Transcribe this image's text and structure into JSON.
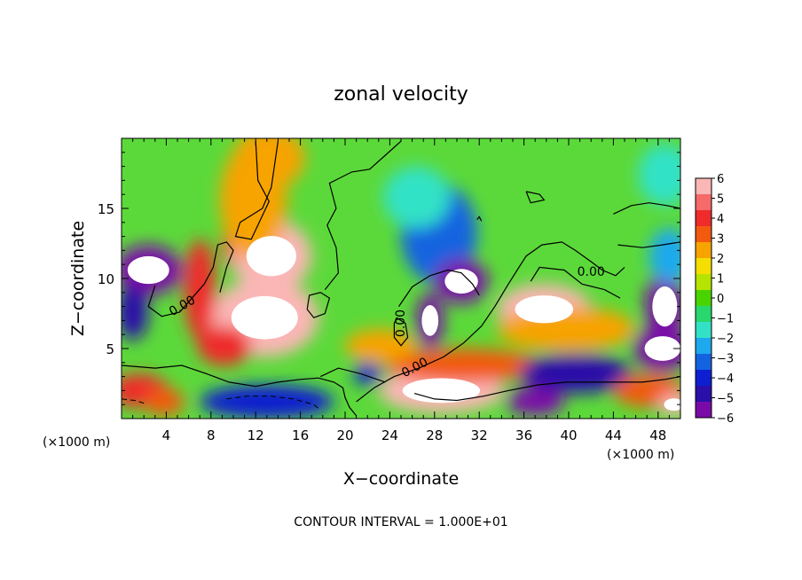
{
  "chart_data": {
    "type": "heatmap",
    "title": "zonal velocity",
    "xlabel": "X−coordinate",
    "ylabel": "Z−coordinate",
    "x_unit_left": "(×1000 m)",
    "x_unit_right": "(×1000 m)",
    "footer": "CONTOUR INTERVAL = 1.000E+01",
    "xlim": [
      0,
      50
    ],
    "ylim": [
      0,
      20
    ],
    "x_ticks": [
      4,
      8,
      12,
      16,
      20,
      24,
      28,
      32,
      36,
      40,
      44,
      48
    ],
    "y_ticks": [
      5,
      10,
      15
    ],
    "colorbar": {
      "min": -6,
      "max": 6,
      "labels": [
        6,
        5,
        4,
        3,
        2,
        1,
        0,
        -1,
        -2,
        -3,
        -4,
        -5,
        -6
      ],
      "colors": [
        "#fbb6b6",
        "#f66a6a",
        "#ef2b2b",
        "#f25a10",
        "#f7a300",
        "#f4df00",
        "#b5e400",
        "#49d400",
        "#28d86e",
        "#33e2c6",
        "#1ea8ee",
        "#1363e0",
        "#0d1fd0",
        "#2a0fa8",
        "#7a0aa8"
      ]
    },
    "contour_labels": [
      "0.00",
      "0.00",
      "0.00",
      "0.00"
    ],
    "contour_lines": [
      {
        "level": 0,
        "points": [
          [
            12,
            19.8
          ],
          [
            12.2,
            17
          ],
          [
            13.2,
            15.5
          ],
          [
            11.6,
            12.8
          ],
          [
            10.2,
            13
          ],
          [
            10.6,
            14
          ],
          [
            12.6,
            15
          ],
          [
            13.4,
            16.5
          ],
          [
            14,
            19.8
          ]
        ]
      },
      {
        "level": 0,
        "points": [
          [
            3,
            9.5
          ],
          [
            2.4,
            8
          ],
          [
            3.6,
            7.3
          ],
          [
            5.2,
            7.6
          ],
          [
            6.2,
            8.5
          ],
          [
            7.4,
            9.6
          ],
          [
            8.2,
            10.8
          ],
          [
            8.6,
            12.4
          ],
          [
            9.4,
            12.6
          ],
          [
            10,
            12
          ],
          [
            9.4,
            10.8
          ],
          [
            8.8,
            9
          ]
        ]
      },
      {
        "level": 0,
        "points": [
          [
            0,
            3.8
          ],
          [
            3,
            3.6
          ],
          [
            5.4,
            3.8
          ],
          [
            7.6,
            3.2
          ],
          [
            9.6,
            2.6
          ],
          [
            12,
            2.3
          ],
          [
            14,
            2.6
          ],
          [
            16,
            2.8
          ],
          [
            17.6,
            2.9
          ],
          [
            19,
            2.6
          ],
          [
            19.8,
            2.2
          ],
          [
            20,
            1.5
          ],
          [
            20.4,
            0.8
          ],
          [
            21,
            0.2
          ]
        ]
      },
      {
        "level": 0,
        "points": [
          [
            18.2,
            9.2
          ],
          [
            19.4,
            10.4
          ],
          [
            19.2,
            12.2
          ],
          [
            18.4,
            13.8
          ],
          [
            19.2,
            15
          ],
          [
            18.6,
            16.8
          ],
          [
            20.6,
            17.6
          ],
          [
            22.2,
            17.8
          ],
          [
            23.6,
            18.8
          ],
          [
            25,
            19.8
          ]
        ]
      },
      {
        "level": 0,
        "points": [
          [
            16.6,
            7.8
          ],
          [
            17.2,
            7.2
          ],
          [
            18.2,
            7.5
          ],
          [
            18.6,
            8.6
          ],
          [
            17.8,
            9
          ],
          [
            16.8,
            8.8
          ],
          [
            16.6,
            7.8
          ]
        ]
      },
      {
        "level": 0,
        "points": [
          [
            24.6,
            7.2
          ],
          [
            25.4,
            6.8
          ],
          [
            25.6,
            5.8
          ],
          [
            25,
            5.2
          ],
          [
            24.4,
            5.8
          ],
          [
            24.4,
            6.8
          ],
          [
            24.6,
            7.2
          ]
        ]
      },
      {
        "level": 0,
        "points": [
          [
            21,
            1.2
          ],
          [
            22.6,
            2.2
          ],
          [
            24.4,
            3
          ],
          [
            26.6,
            3.6
          ],
          [
            28.8,
            4.4
          ],
          [
            30.6,
            5.4
          ],
          [
            32.2,
            6.6
          ],
          [
            33.4,
            8
          ],
          [
            34.6,
            9.6
          ],
          [
            35.4,
            10.6
          ],
          [
            36.2,
            11.6
          ],
          [
            37.6,
            12.4
          ],
          [
            39.4,
            12.6
          ],
          [
            40.6,
            12
          ],
          [
            42,
            11.2
          ],
          [
            43,
            10.6
          ],
          [
            44.2,
            10.2
          ],
          [
            45,
            10.8
          ]
        ]
      },
      {
        "level": 0,
        "points": [
          [
            44,
            14.6
          ],
          [
            45.6,
            15.2
          ],
          [
            47.2,
            15.4
          ],
          [
            48.8,
            15.2
          ],
          [
            50,
            15
          ]
        ]
      },
      {
        "level": 0,
        "points": [
          [
            44.4,
            12.4
          ],
          [
            46.6,
            12.2
          ],
          [
            48.4,
            12.4
          ],
          [
            50,
            12.6
          ]
        ]
      },
      {
        "level": 0,
        "points": [
          [
            36.6,
            9.8
          ],
          [
            37.4,
            10.8
          ],
          [
            39.6,
            10.6
          ],
          [
            41.2,
            9.6
          ],
          [
            43.2,
            9.2
          ],
          [
            44.6,
            8.6
          ]
        ]
      },
      {
        "level": 0,
        "points": [
          [
            17.8,
            3
          ],
          [
            19.4,
            3.6
          ],
          [
            21.4,
            3.2
          ],
          [
            23.6,
            2.6
          ]
        ]
      },
      {
        "level": 0,
        "points": [
          [
            26.2,
            1.8
          ],
          [
            28,
            1.4
          ],
          [
            30,
            1.3
          ],
          [
            32.4,
            1.6
          ],
          [
            34.6,
            2
          ],
          [
            37.2,
            2.4
          ],
          [
            39.8,
            2.6
          ],
          [
            42,
            2.6
          ],
          [
            44.4,
            2.6
          ],
          [
            46.6,
            2.6
          ],
          [
            48.6,
            2.8
          ],
          [
            50,
            3
          ]
        ]
      },
      {
        "level": 0,
        "points": [
          [
            24.8,
            8
          ],
          [
            26,
            9.4
          ],
          [
            27.6,
            10.2
          ],
          [
            29.2,
            10.6
          ],
          [
            30.4,
            10.4
          ],
          [
            31.4,
            9.6
          ],
          [
            32,
            8.8
          ]
        ]
      },
      {
        "level": 0,
        "points": [
          [
            36.2,
            16.2
          ],
          [
            37.4,
            16
          ],
          [
            37.8,
            15.6
          ],
          [
            36.6,
            15.4
          ],
          [
            36.2,
            16.2
          ]
        ]
      },
      {
        "level": 0,
        "points": [
          [
            31.8,
            14.2
          ],
          [
            32,
            14.4
          ],
          [
            32.2,
            14.1
          ]
        ]
      }
    ],
    "dashed_lines": [
      {
        "points": [
          [
            9.4,
            1.4
          ],
          [
            11.2,
            1.6
          ],
          [
            13.4,
            1.6
          ],
          [
            15.4,
            1.4
          ],
          [
            17.2,
            1
          ],
          [
            17.8,
            0.6
          ]
        ]
      },
      {
        "points": [
          [
            0,
            1.4
          ],
          [
            1.2,
            1.3
          ],
          [
            2,
            1.1
          ]
        ]
      }
    ],
    "blobs": [
      {
        "x": 10.8,
        "y": 12.4,
        "rx": 1.8,
        "ry": 2.0,
        "value": 4.2
      },
      {
        "x": 13.4,
        "y": 11.6,
        "rx": 3.6,
        "ry": 2.6,
        "value": 6.0
      },
      {
        "x": 11.8,
        "y": 15.6,
        "rx": 3.0,
        "ry": 4.2,
        "value": 3.0
      },
      {
        "x": 13.2,
        "y": 18.6,
        "rx": 3.2,
        "ry": 2.2,
        "value": 2.6
      },
      {
        "x": 12.8,
        "y": 7.2,
        "rx": 4.8,
        "ry": 2.8,
        "value": 6.0
      },
      {
        "x": 9.2,
        "y": 5.2,
        "rx": 2.4,
        "ry": 1.4,
        "value": 4.6
      },
      {
        "x": 7.0,
        "y": 9.2,
        "rx": 1.4,
        "ry": 3.6,
        "value": 4.0
      },
      {
        "x": 2.4,
        "y": 10.6,
        "rx": 3.0,
        "ry": 1.8,
        "value": -6.0
      },
      {
        "x": 1.0,
        "y": 7.6,
        "rx": 1.4,
        "ry": 2.0,
        "value": -4.8
      },
      {
        "x": 1.6,
        "y": 2.0,
        "rx": 2.6,
        "ry": 1.2,
        "value": 4.6
      },
      {
        "x": 3.8,
        "y": 1.2,
        "rx": 1.8,
        "ry": 1.0,
        "value": 3.6
      },
      {
        "x": 13.0,
        "y": 1.2,
        "rx": 6.0,
        "ry": 1.2,
        "value": -4.0
      },
      {
        "x": 28.4,
        "y": 13.2,
        "rx": 3.4,
        "ry": 3.6,
        "value": -3.6
      },
      {
        "x": 30.4,
        "y": 9.8,
        "rx": 2.4,
        "ry": 1.6,
        "value": -6.0
      },
      {
        "x": 27.6,
        "y": 7.0,
        "rx": 1.2,
        "ry": 2.0,
        "value": -6.0
      },
      {
        "x": 28.6,
        "y": 2.0,
        "rx": 5.6,
        "ry": 1.6,
        "value": 6.0
      },
      {
        "x": 30.6,
        "y": 3.8,
        "rx": 7.0,
        "ry": 1.2,
        "value": 3.4
      },
      {
        "x": 37.8,
        "y": 7.8,
        "rx": 4.2,
        "ry": 1.8,
        "value": 6.0
      },
      {
        "x": 39.8,
        "y": 6.4,
        "rx": 6.2,
        "ry": 1.6,
        "value": 2.6
      },
      {
        "x": 40.6,
        "y": 3.2,
        "rx": 5.0,
        "ry": 1.4,
        "value": -5.0
      },
      {
        "x": 37.0,
        "y": 1.2,
        "rx": 2.6,
        "ry": 1.0,
        "value": -5.8
      },
      {
        "x": 48.6,
        "y": 8.0,
        "rx": 1.8,
        "ry": 2.6,
        "value": -6.0
      },
      {
        "x": 48.4,
        "y": 5.0,
        "rx": 2.6,
        "ry": 1.6,
        "value": -6.0
      },
      {
        "x": 47.2,
        "y": 2.0,
        "rx": 3.2,
        "ry": 1.2,
        "value": 3.6
      },
      {
        "x": 49.4,
        "y": 1.0,
        "rx": 1.4,
        "ry": 0.8,
        "value": 6.0
      },
      {
        "x": 49.0,
        "y": 11.6,
        "rx": 1.8,
        "ry": 2.0,
        "value": -2.6
      },
      {
        "x": 48.6,
        "y": 17.4,
        "rx": 2.4,
        "ry": 2.2,
        "value": -1.6
      },
      {
        "x": 23.2,
        "y": 5.2,
        "rx": 3.2,
        "ry": 1.2,
        "value": 3.0
      },
      {
        "x": 22.0,
        "y": 3.2,
        "rx": 1.2,
        "ry": 0.8,
        "value": -4.6
      },
      {
        "x": 26.4,
        "y": 15.8,
        "rx": 3.0,
        "ry": 2.2,
        "value": -1.8
      }
    ]
  }
}
